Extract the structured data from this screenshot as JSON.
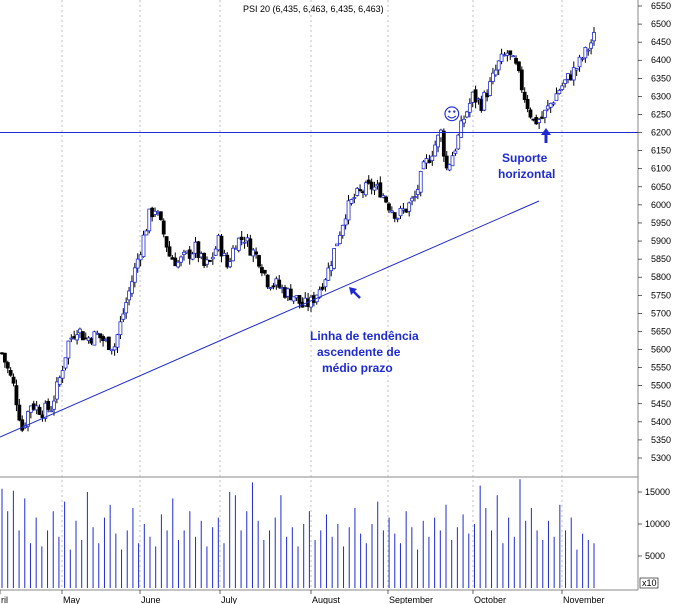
{
  "chart_data": {
    "type": "candlestick",
    "title": "PSI 20 (6,435, 6,463, 6,435, 6,463)",
    "price_axis": {
      "ylim": [
        5250,
        6560
      ],
      "ticks": [
        5300,
        5350,
        5400,
        5450,
        5500,
        5550,
        5600,
        5650,
        5700,
        5750,
        5800,
        5850,
        5900,
        5950,
        6000,
        6050,
        6100,
        6150,
        6200,
        6250,
        6300,
        6350,
        6400,
        6450,
        6500,
        6550
      ]
    },
    "volume_axis": {
      "ticks": [
        5000,
        10000,
        15000
      ],
      "scale_label": "x10"
    },
    "month_labels": [
      "ril",
      "May",
      "June",
      "July",
      "August",
      "September",
      "October",
      "November"
    ],
    "price_close_series": [
      {
        "day": 0,
        "close": 5590
      },
      {
        "day": 4,
        "close": 5500
      },
      {
        "day": 7,
        "close": 5380
      },
      {
        "day": 10,
        "close": 5450
      },
      {
        "day": 14,
        "close": 5430
      },
      {
        "day": 17,
        "close": 5440
      },
      {
        "day": 20,
        "close": 5520
      },
      {
        "day": 23,
        "close": 5620
      },
      {
        "day": 26,
        "close": 5660
      },
      {
        "day": 29,
        "close": 5630
      },
      {
        "day": 33,
        "close": 5640
      },
      {
        "day": 36,
        "close": 5620
      },
      {
        "day": 39,
        "close": 5610
      },
      {
        "day": 42,
        "close": 5700
      },
      {
        "day": 45,
        "close": 5790
      },
      {
        "day": 48,
        "close": 5880
      },
      {
        "day": 51,
        "close": 5970
      },
      {
        "day": 53,
        "close": 5990
      },
      {
        "day": 56,
        "close": 5920
      },
      {
        "day": 58,
        "close": 5860
      },
      {
        "day": 61,
        "close": 5840
      },
      {
        "day": 64,
        "close": 5860
      },
      {
        "day": 67,
        "close": 5880
      },
      {
        "day": 70,
        "close": 5830
      },
      {
        "day": 72,
        "close": 5840
      },
      {
        "day": 75,
        "close": 5900
      },
      {
        "day": 78,
        "close": 5830
      },
      {
        "day": 81,
        "close": 5900
      },
      {
        "day": 84,
        "close": 5910
      },
      {
        "day": 86,
        "close": 5880
      },
      {
        "day": 89,
        "close": 5850
      },
      {
        "day": 92,
        "close": 5790
      },
      {
        "day": 95,
        "close": 5780
      },
      {
        "day": 98,
        "close": 5760
      },
      {
        "day": 101,
        "close": 5750
      },
      {
        "day": 104,
        "close": 5720
      },
      {
        "day": 107,
        "close": 5730
      },
      {
        "day": 110,
        "close": 5770
      },
      {
        "day": 113,
        "close": 5820
      },
      {
        "day": 116,
        "close": 5900
      },
      {
        "day": 119,
        "close": 5980
      },
      {
        "day": 122,
        "close": 6020
      },
      {
        "day": 125,
        "close": 6040
      },
      {
        "day": 128,
        "close": 6050
      },
      {
        "day": 131,
        "close": 6040
      },
      {
        "day": 134,
        "close": 6000
      },
      {
        "day": 137,
        "close": 5970
      },
      {
        "day": 140,
        "close": 5990
      },
      {
        "day": 143,
        "close": 6020
      },
      {
        "day": 146,
        "close": 6100
      },
      {
        "day": 149,
        "close": 6150
      },
      {
        "day": 152,
        "close": 6200
      },
      {
        "day": 154,
        "close": 6100
      },
      {
        "day": 157,
        "close": 6160
      },
      {
        "day": 160,
        "close": 6240
      },
      {
        "day": 163,
        "close": 6300
      },
      {
        "day": 166,
        "close": 6280
      },
      {
        "day": 169,
        "close": 6330
      },
      {
        "day": 172,
        "close": 6390
      },
      {
        "day": 175,
        "close": 6420
      },
      {
        "day": 178,
        "close": 6380
      },
      {
        "day": 181,
        "close": 6300
      },
      {
        "day": 184,
        "close": 6230
      },
      {
        "day": 187,
        "close": 6240
      },
      {
        "day": 190,
        "close": 6280
      },
      {
        "day": 193,
        "close": 6320
      },
      {
        "day": 196,
        "close": 6350
      },
      {
        "day": 199,
        "close": 6380
      },
      {
        "day": 202,
        "close": 6420
      },
      {
        "day": 205,
        "close": 6463
      }
    ],
    "volume_series": [
      15500,
      12000,
      15200,
      9000,
      14000,
      7000,
      11000,
      6500,
      9000,
      12000,
      8000,
      13500,
      6000,
      10500,
      7500,
      15000,
      9500,
      7000,
      11000,
      13000,
      8500,
      6000,
      9000,
      12500,
      7000,
      10000,
      8000,
      6500,
      11500,
      9000,
      14000,
      7500,
      9000,
      12000,
      8000,
      10500,
      6500,
      9500,
      11000,
      7000,
      15000,
      14500,
      9000,
      12000,
      16500,
      10500,
      7500,
      9000,
      11000,
      14500,
      8000,
      9500,
      6500,
      10000,
      12000,
      7500,
      9000,
      11500,
      8000,
      10000,
      6500,
      9500,
      12500,
      8500,
      7000,
      10000,
      13500,
      9000,
      11000,
      8500,
      7000,
      12000,
      9500,
      6000,
      10500,
      8000,
      11000,
      9000,
      13000,
      7500,
      9500,
      11500,
      8500,
      10000,
      16000,
      12500,
      9000,
      14500,
      7000,
      11000,
      8000,
      17000,
      10500,
      12500,
      9000,
      7500,
      10500,
      8000,
      13000,
      9000,
      11000,
      6000,
      8500,
      7500,
      7000
    ]
  },
  "annotations": {
    "trend_label_line1": "Linha de tendência",
    "trend_label_line2": "ascendente de",
    "trend_label_line3": "médio prazo",
    "support_label_line1": "Suporte",
    "support_label_line2": "horizontal",
    "support_level": 6200,
    "smiley_glyph": "☺"
  },
  "colors": {
    "candle": "#000000",
    "annotation": "#1f2bd1",
    "volume": "#1f2bd1",
    "grid": "#999999"
  }
}
